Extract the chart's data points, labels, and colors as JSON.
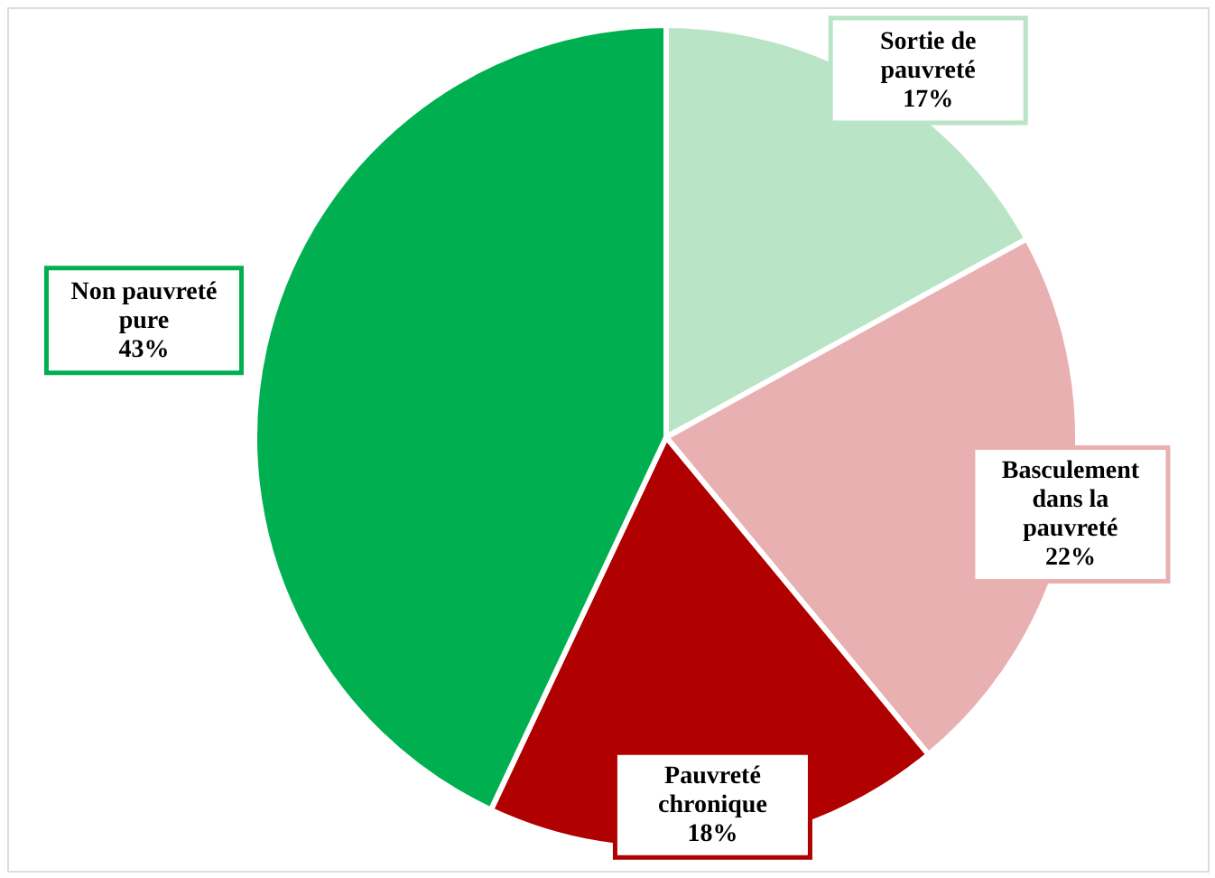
{
  "chart_data": {
    "type": "pie",
    "categories": [
      "Sortie de pauvreté",
      "Basculement dans la pauvreté",
      "Pauvreté chronique",
      "Non pauvreté pure"
    ],
    "values": [
      17,
      22,
      18,
      43
    ],
    "colors": [
      "#b9e4c6",
      "#e8b0b0",
      "#b00000",
      "#00b050"
    ],
    "value_labels": [
      "17%",
      "22%",
      "18%",
      "43%"
    ]
  }
}
